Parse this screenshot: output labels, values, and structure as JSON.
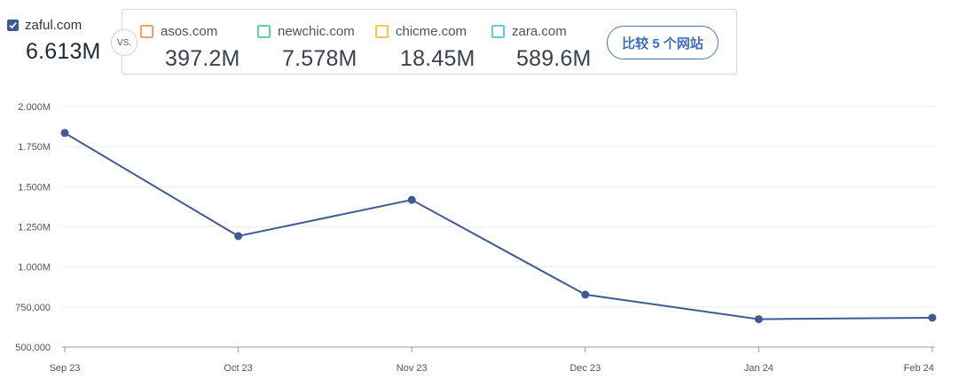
{
  "primary": {
    "site": "zaful.com",
    "value": "6.613M",
    "checked": true
  },
  "vs_label": "VS.",
  "competitors": [
    {
      "site": "asos.com",
      "value": "397.2M",
      "color": "#f0a070"
    },
    {
      "site": "newchic.com",
      "value": "7.578M",
      "color": "#5ed1b4"
    },
    {
      "site": "chicme.com",
      "value": "18.45M",
      "color": "#f5c94a"
    },
    {
      "site": "zara.com",
      "value": "589.6M",
      "color": "#5ccfe0"
    }
  ],
  "compare_button": "比较 5 个网站",
  "chart_data": {
    "type": "line",
    "categories": [
      "Sep 23",
      "Oct 23",
      "Nov 23",
      "Dec 23",
      "Jan 24",
      "Feb 24"
    ],
    "series": [
      {
        "values": [
          1835000,
          1192000,
          1418000,
          827000,
          674000,
          683000
        ],
        "color": "#3f5a94"
      }
    ],
    "ylim": [
      500000,
      2000000
    ],
    "yticks": [
      {
        "v": 500000,
        "label": "500,000"
      },
      {
        "v": 750000,
        "label": "750,000"
      },
      {
        "v": 1000000,
        "label": "1.000M"
      },
      {
        "v": 1250000,
        "label": "1.250M"
      },
      {
        "v": 1500000,
        "label": "1.500M"
      },
      {
        "v": 1750000,
        "label": "1.750M"
      },
      {
        "v": 2000000,
        "label": "2.000M"
      }
    ],
    "grid": true,
    "xlabel": "",
    "ylabel": ""
  }
}
